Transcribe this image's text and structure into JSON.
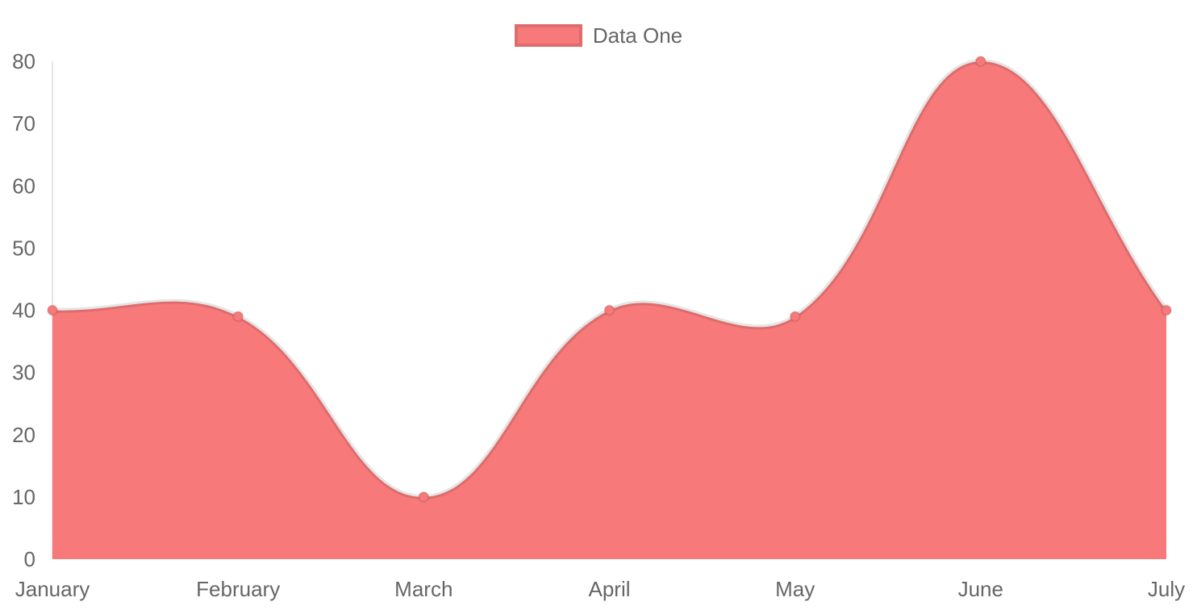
{
  "chart_data": {
    "type": "area",
    "title": "",
    "categories": [
      "January",
      "February",
      "March",
      "April",
      "May",
      "June",
      "July"
    ],
    "series": [
      {
        "name": "Data One",
        "values": [
          40,
          39,
          10,
          40,
          39,
          80,
          40
        ]
      }
    ],
    "xlabel": "",
    "ylabel": "",
    "ylim": [
      0,
      80
    ],
    "y_ticks": [
      0,
      10,
      20,
      30,
      40,
      50,
      60,
      70,
      80
    ],
    "grid": false,
    "legend_position": "top",
    "line_tension": 0.4,
    "colors": {
      "fill": "#f87979",
      "line": "rgba(0,0,0,0.1)",
      "point_fill": "#f87979",
      "point_border": "rgba(0,0,0,0.1)",
      "axis_line": "rgba(0,0,0,0.1)",
      "tick_text": "#666666"
    }
  }
}
